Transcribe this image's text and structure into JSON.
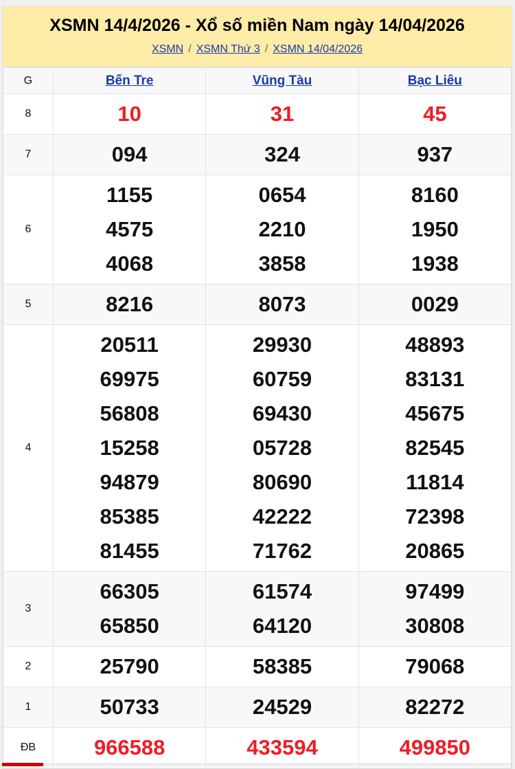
{
  "header": {
    "title": "XSMN 14/4/2026 - Xổ số miền Nam ngày 14/04/2026",
    "breadcrumbs": [
      "XSMN",
      "XSMN Thứ 3",
      "XSMN 14/04/2026"
    ]
  },
  "table": {
    "g_label": "G",
    "provinces": [
      "Bến Tre",
      "Vũng Tàu",
      "Bạc Liêu"
    ],
    "rows": [
      {
        "prize": "8",
        "red": true,
        "values": [
          [
            "10"
          ],
          [
            "31"
          ],
          [
            "45"
          ]
        ]
      },
      {
        "prize": "7",
        "values": [
          [
            "094"
          ],
          [
            "324"
          ],
          [
            "937"
          ]
        ]
      },
      {
        "prize": "6",
        "values": [
          [
            "1155",
            "4575",
            "4068"
          ],
          [
            "0654",
            "2210",
            "3858"
          ],
          [
            "8160",
            "1950",
            "1938"
          ]
        ]
      },
      {
        "prize": "5",
        "values": [
          [
            "8216"
          ],
          [
            "8073"
          ],
          [
            "0029"
          ]
        ]
      },
      {
        "prize": "4",
        "values": [
          [
            "20511",
            "69975",
            "56808",
            "15258",
            "94879",
            "85385",
            "81455"
          ],
          [
            "29930",
            "60759",
            "69430",
            "05728",
            "80690",
            "42222",
            "71762"
          ],
          [
            "48893",
            "83131",
            "45675",
            "82545",
            "11814",
            "72398",
            "20865"
          ]
        ]
      },
      {
        "prize": "3",
        "values": [
          [
            "66305",
            "65850"
          ],
          [
            "61574",
            "64120"
          ],
          [
            "97499",
            "30808"
          ]
        ]
      },
      {
        "prize": "2",
        "values": [
          [
            "25790"
          ],
          [
            "58385"
          ],
          [
            "79068"
          ]
        ]
      },
      {
        "prize": "1",
        "values": [
          [
            "50733"
          ],
          [
            "24529"
          ],
          [
            "82272"
          ]
        ]
      },
      {
        "prize": "ĐB",
        "red": true,
        "values": [
          [
            "966588"
          ],
          [
            "433594"
          ],
          [
            "499850"
          ]
        ]
      }
    ]
  },
  "colors": {
    "red": "#ee1c25",
    "link": "#1a3aa8",
    "header_bg": "#fdeba8"
  }
}
